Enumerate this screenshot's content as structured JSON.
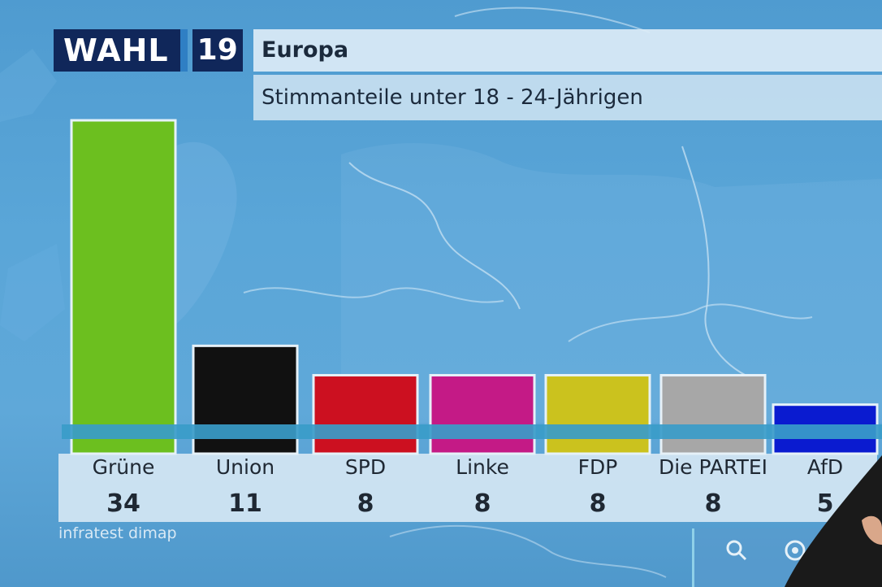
{
  "logo": {
    "wahl": "WAHL",
    "year": "19"
  },
  "header": {
    "title": "Europa",
    "subtitle": "Stimmanteile unter 18 - 24-Jährigen"
  },
  "source": "infratest dimap",
  "colors": {
    "Grüne": "#6cbf1f",
    "Union": "#111111",
    "SPD": "#cc1020",
    "Linke": "#c41a86",
    "FDP": "#cbc21e",
    "Die PARTEI": "#a7a7a7",
    "AfD": "#0a1bd0"
  },
  "icons": [
    "search-icon",
    "target-icon"
  ],
  "chart_data": {
    "type": "bar",
    "title": "Europa",
    "subtitle": "Stimmanteile unter 18 - 24-Jährigen",
    "categories": [
      "Grüne",
      "Union",
      "SPD",
      "Linke",
      "FDP",
      "Die PARTEI",
      "AfD"
    ],
    "values": [
      34,
      11,
      8,
      8,
      8,
      8,
      5
    ],
    "value_labels": [
      "34",
      "11",
      "8",
      "8",
      "8",
      "8",
      "5"
    ],
    "grid": false,
    "legend": "none"
  }
}
